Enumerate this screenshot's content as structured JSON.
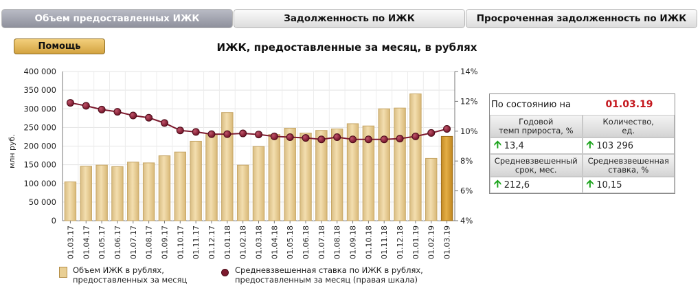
{
  "tabs": [
    {
      "label": "Объем предоставленных ИЖК",
      "active": true
    },
    {
      "label": "Задолженность по ИЖК",
      "active": false
    },
    {
      "label": "Просроченная задолженность по ИЖК",
      "active": false
    }
  ],
  "help_label": "Помощь",
  "chart_data": {
    "type": "bar",
    "title": "ИЖК, предоставленные за месяц, в рублях",
    "ylabel": "млн руб.",
    "categories": [
      "01.03.17",
      "01.04.17",
      "01.05.17",
      "01.06.17",
      "01.07.17",
      "01.08.17",
      "01.09.17",
      "01.10.17",
      "01.11.17",
      "01.12.17",
      "01.01.18",
      "01.02.18",
      "01.03.18",
      "01.04.18",
      "01.05.18",
      "01.06.18",
      "01.07.18",
      "01.08.18",
      "01.09.18",
      "01.10.18",
      "01.11.18",
      "01.12.18",
      "01.01.19",
      "01.02.19",
      "01.03.19"
    ],
    "ylim": [
      0,
      400000
    ],
    "y_ticks": [
      "0",
      "50 000",
      "100 000",
      "150 000",
      "200 000",
      "250 000",
      "300 000",
      "350 000",
      "400 000"
    ],
    "y2lim": [
      4,
      14
    ],
    "y2_ticks": [
      "4%",
      "6%",
      "8%",
      "10%",
      "12%",
      "14%"
    ],
    "series": [
      {
        "name": "Объем ИЖК в рублях, предоставленных за месяц",
        "type": "bar",
        "values": [
          104000,
          146000,
          149000,
          145000,
          157000,
          155000,
          174000,
          184000,
          213000,
          232000,
          290000,
          149000,
          199000,
          231000,
          248000,
          235000,
          242000,
          246000,
          260000,
          254000,
          300000,
          302000,
          340000,
          167000,
          226000
        ]
      },
      {
        "name": "Средневзвешенная ставка по ИЖК в рублях, предоставленным за месяц (правая шкала)",
        "type": "line",
        "axis": "right",
        "values": [
          11.9,
          11.7,
          11.45,
          11.3,
          11.05,
          10.9,
          10.55,
          10.05,
          9.95,
          9.8,
          9.8,
          9.85,
          9.78,
          9.65,
          9.6,
          9.55,
          9.45,
          9.6,
          9.45,
          9.45,
          9.45,
          9.5,
          9.65,
          9.88,
          10.15
        ]
      }
    ],
    "highlight_color": "#d79e2f",
    "bar_color": "#e9cf94",
    "line_color": "#7d1a2e",
    "grid": true
  },
  "legend": [
    {
      "line1": "Объем ИЖК в рублях,",
      "line2": "предоставленных за месяц"
    },
    {
      "line1": "Средневзвешенная ставка по ИЖК  в рублях,",
      "line2": "предоставленным за месяц (правая шкала)"
    }
  ],
  "info": {
    "as_of_label": "По состоянию на",
    "as_of_date": "01.03.19",
    "growth_label_1": "Годовой",
    "growth_label_2": "темп прироста, %",
    "count_label_1": "Количество,",
    "count_label_2": "ед.",
    "growth_value": "13,4",
    "count_value": "103 296",
    "term_label_1": "Средневзвешенный",
    "term_label_2": "срок, мес.",
    "rate_label_1": "Средневзвешенная",
    "rate_label_2": "ставка, %",
    "term_value": "212,6",
    "rate_value": "10,15"
  }
}
